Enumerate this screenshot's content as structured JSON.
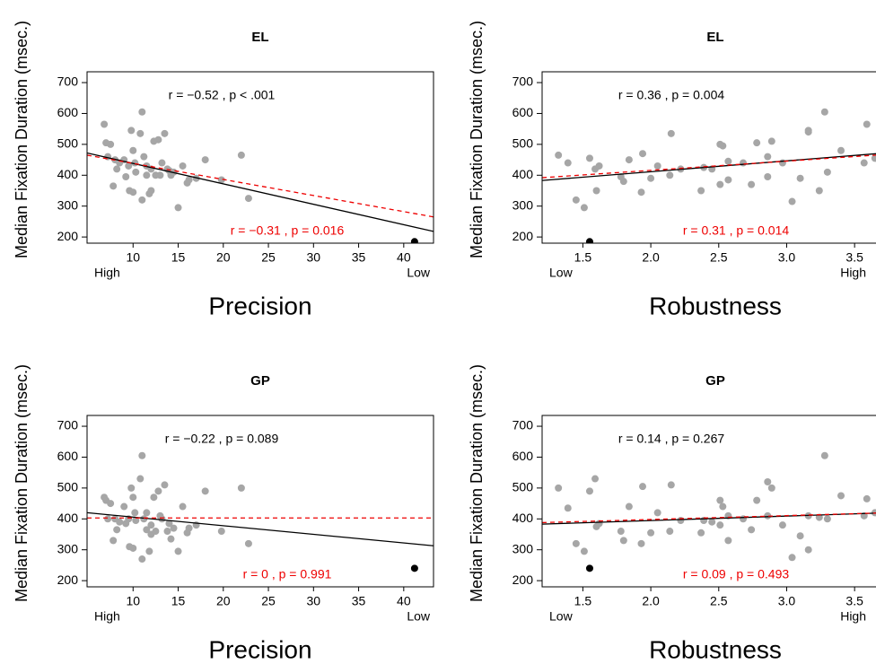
{
  "chart_data": [
    {
      "type": "scatter",
      "title": "EL",
      "xlabel": "Precision",
      "ylabel": "Median Fixation Duration (msec.)",
      "x_end_labels": [
        "High",
        "Low"
      ],
      "annotations": [
        {
          "text": "r = −0.52 , p < .001",
          "color": "#000000"
        },
        {
          "text": "r = −0.31 , p = 0.016",
          "color": "#ee0000"
        }
      ],
      "xlim": [
        4.9,
        43.3
      ],
      "xticks": [
        10,
        15,
        20,
        25,
        30,
        35,
        40
      ],
      "ylim": [
        180,
        735
      ],
      "yticks": [
        200,
        300,
        400,
        500,
        600,
        700
      ],
      "series": [
        {
          "style": "points",
          "color": "#a6a6a6",
          "x": [
            6.8,
            7,
            7.5,
            7.2,
            8,
            7.8,
            8.5,
            8.2,
            9,
            9.5,
            9.6,
            9.8,
            10,
            10.2,
            10.3,
            10,
            10.8,
            11,
            11.2,
            11.5,
            11,
            11.8,
            12,
            12.3,
            12.5,
            12.8,
            13,
            13.2,
            13.5,
            13.8,
            14,
            14.2,
            14.5,
            15,
            15.5,
            16,
            16.2,
            17,
            18,
            19.8,
            22,
            22.8,
            12,
            11.5,
            9.2
          ],
          "values": [
            565,
            505,
            500,
            460,
            450,
            365,
            440,
            420,
            450,
            430,
            350,
            545,
            480,
            440,
            410,
            345,
            535,
            605,
            460,
            400,
            320,
            340,
            420,
            510,
            400,
            515,
            400,
            440,
            535,
            420,
            415,
            400,
            410,
            295,
            430,
            375,
            385,
            390,
            450,
            385,
            465,
            325,
            350,
            430,
            395
          ]
        },
        {
          "style": "points",
          "color": "#000000",
          "x": [
            41.2
          ],
          "values": [
            185
          ]
        },
        {
          "style": "line",
          "color": "#000000",
          "x": [
            4.9,
            43.3
          ],
          "values": [
            472,
            218
          ]
        },
        {
          "style": "line",
          "color": "#ee0000",
          "dash": true,
          "x": [
            4.9,
            43.3
          ],
          "values": [
            465,
            265
          ]
        }
      ]
    },
    {
      "type": "scatter",
      "title": "EL",
      "xlabel": "Robustness",
      "ylabel": "Median Fixation Duration (msec.)",
      "x_end_labels": [
        "Low",
        "High"
      ],
      "annotations": [
        {
          "text": "r = 0.36 , p = 0.004",
          "color": "#000000"
        },
        {
          "text": "r = 0.31 , p = 0.014",
          "color": "#ee0000"
        }
      ],
      "xlim": [
        1.2,
        3.75
      ],
      "xticks": [
        1.5,
        {
          "value": 2,
          "label": "2.0"
        },
        2.5,
        {
          "value": 3,
          "label": "3.0"
        },
        3.5
      ],
      "ylim": [
        180,
        735
      ],
      "yticks": [
        200,
        300,
        400,
        500,
        600,
        700
      ],
      "series": [
        {
          "style": "points",
          "color": "#a6a6a6",
          "x": [
            1.32,
            1.39,
            1.45,
            1.51,
            1.55,
            1.59,
            1.6,
            1.62,
            1.78,
            1.8,
            1.84,
            1.93,
            1.94,
            2,
            2.05,
            2.15,
            2.14,
            2.22,
            2.37,
            2.39,
            2.45,
            2.51,
            2.53,
            2.57,
            2.51,
            2.57,
            2.68,
            2.74,
            2.78,
            2.86,
            2.86,
            2.89,
            2.97,
            3.04,
            3.1,
            3.16,
            3.16,
            3.24,
            3.28,
            3.3,
            3.4,
            3.57,
            3.59,
            3.65,
            3.69
          ],
          "values": [
            465,
            440,
            320,
            295,
            455,
            420,
            350,
            430,
            395,
            380,
            450,
            345,
            470,
            390,
            430,
            535,
            400,
            420,
            350,
            425,
            420,
            500,
            495,
            385,
            370,
            445,
            440,
            370,
            505,
            395,
            460,
            510,
            440,
            315,
            390,
            540,
            545,
            350,
            605,
            410,
            480,
            440,
            565,
            455,
            420
          ]
        },
        {
          "style": "points",
          "color": "#000000",
          "x": [
            1.55
          ],
          "values": [
            185
          ]
        },
        {
          "style": "line",
          "color": "#000000",
          "x": [
            1.2,
            3.75
          ],
          "values": [
            383,
            473
          ]
        },
        {
          "style": "line",
          "color": "#ee0000",
          "dash": true,
          "x": [
            1.2,
            3.75
          ],
          "values": [
            392,
            468
          ]
        }
      ]
    },
    {
      "type": "scatter",
      "title": "GP",
      "xlabel": "Precision",
      "ylabel": "Median Fixation Duration (msec.)",
      "x_end_labels": [
        "High",
        "Low"
      ],
      "annotations": [
        {
          "text": "r = −0.22 , p = 0.089",
          "color": "#000000"
        },
        {
          "text": "r = 0 , p = 0.991",
          "color": "#ee0000"
        }
      ],
      "xlim": [
        4.9,
        43.3
      ],
      "xticks": [
        10,
        15,
        20,
        25,
        30,
        35,
        40
      ],
      "ylim": [
        180,
        735
      ],
      "yticks": [
        200,
        300,
        400,
        500,
        600,
        700
      ],
      "series": [
        {
          "style": "points",
          "color": "#a6a6a6",
          "x": [
            6.8,
            7,
            7.5,
            7.2,
            8,
            7.8,
            8.5,
            8.2,
            9,
            9.5,
            9.6,
            9.8,
            10,
            10.2,
            10.3,
            10,
            10.8,
            11,
            11.2,
            11.5,
            11,
            11.8,
            12,
            12.3,
            12.5,
            12.8,
            13,
            13.2,
            13.5,
            13.8,
            14,
            14.2,
            14.5,
            15,
            15.5,
            16,
            16.2,
            17,
            18,
            19.8,
            22,
            22.8,
            12,
            11.5,
            9.2
          ],
          "values": [
            470,
            460,
            450,
            400,
            400,
            330,
            390,
            365,
            440,
            400,
            310,
            500,
            470,
            420,
            395,
            305,
            530,
            605,
            400,
            365,
            270,
            295,
            380,
            470,
            360,
            490,
            410,
            400,
            510,
            360,
            385,
            335,
            370,
            295,
            440,
            355,
            370,
            380,
            490,
            360,
            500,
            320,
            350,
            420,
            385
          ]
        },
        {
          "style": "points",
          "color": "#000000",
          "x": [
            41.2
          ],
          "values": [
            240
          ]
        },
        {
          "style": "line",
          "color": "#000000",
          "x": [
            4.9,
            43.3
          ],
          "values": [
            420,
            313
          ]
        },
        {
          "style": "line",
          "color": "#ee0000",
          "dash": true,
          "x": [
            4.9,
            43.3
          ],
          "values": [
            403,
            403
          ]
        }
      ]
    },
    {
      "type": "scatter",
      "title": "GP",
      "xlabel": "Robustness",
      "ylabel": "Median Fixation Duration (msec.)",
      "x_end_labels": [
        "Low",
        "High"
      ],
      "annotations": [
        {
          "text": "r = 0.14 , p = 0.267",
          "color": "#000000"
        },
        {
          "text": "r = 0.09 , p = 0.493",
          "color": "#ee0000"
        }
      ],
      "xlim": [
        1.2,
        3.75
      ],
      "xticks": [
        1.5,
        {
          "value": 2,
          "label": "2.0"
        },
        2.5,
        {
          "value": 3,
          "label": "3.0"
        },
        3.5
      ],
      "ylim": [
        180,
        735
      ],
      "yticks": [
        200,
        300,
        400,
        500,
        600,
        700
      ],
      "series": [
        {
          "style": "points",
          "color": "#a6a6a6",
          "x": [
            1.32,
            1.39,
            1.45,
            1.51,
            1.55,
            1.59,
            1.6,
            1.62,
            1.78,
            1.8,
            1.84,
            1.93,
            1.94,
            2,
            2.05,
            2.15,
            2.14,
            2.22,
            2.37,
            2.39,
            2.45,
            2.51,
            2.53,
            2.57,
            2.51,
            2.57,
            2.68,
            2.74,
            2.78,
            2.86,
            2.86,
            2.89,
            2.97,
            3.04,
            3.1,
            3.16,
            3.16,
            3.24,
            3.28,
            3.3,
            3.4,
            3.57,
            3.59,
            3.65,
            3.69
          ],
          "values": [
            500,
            435,
            320,
            295,
            490,
            530,
            375,
            385,
            360,
            330,
            440,
            320,
            505,
            355,
            420,
            510,
            360,
            395,
            355,
            395,
            390,
            460,
            440,
            330,
            380,
            410,
            400,
            365,
            460,
            410,
            520,
            500,
            380,
            275,
            345,
            410,
            300,
            405,
            605,
            400,
            475,
            410,
            465,
            420,
            370
          ]
        },
        {
          "style": "points",
          "color": "#000000",
          "x": [
            1.55
          ],
          "values": [
            240
          ]
        },
        {
          "style": "line",
          "color": "#000000",
          "x": [
            1.2,
            3.75
          ],
          "values": [
            383,
            420
          ]
        },
        {
          "style": "line",
          "color": "#ee0000",
          "dash": true,
          "x": [
            1.2,
            3.75
          ],
          "values": [
            388,
            420
          ]
        }
      ]
    }
  ]
}
